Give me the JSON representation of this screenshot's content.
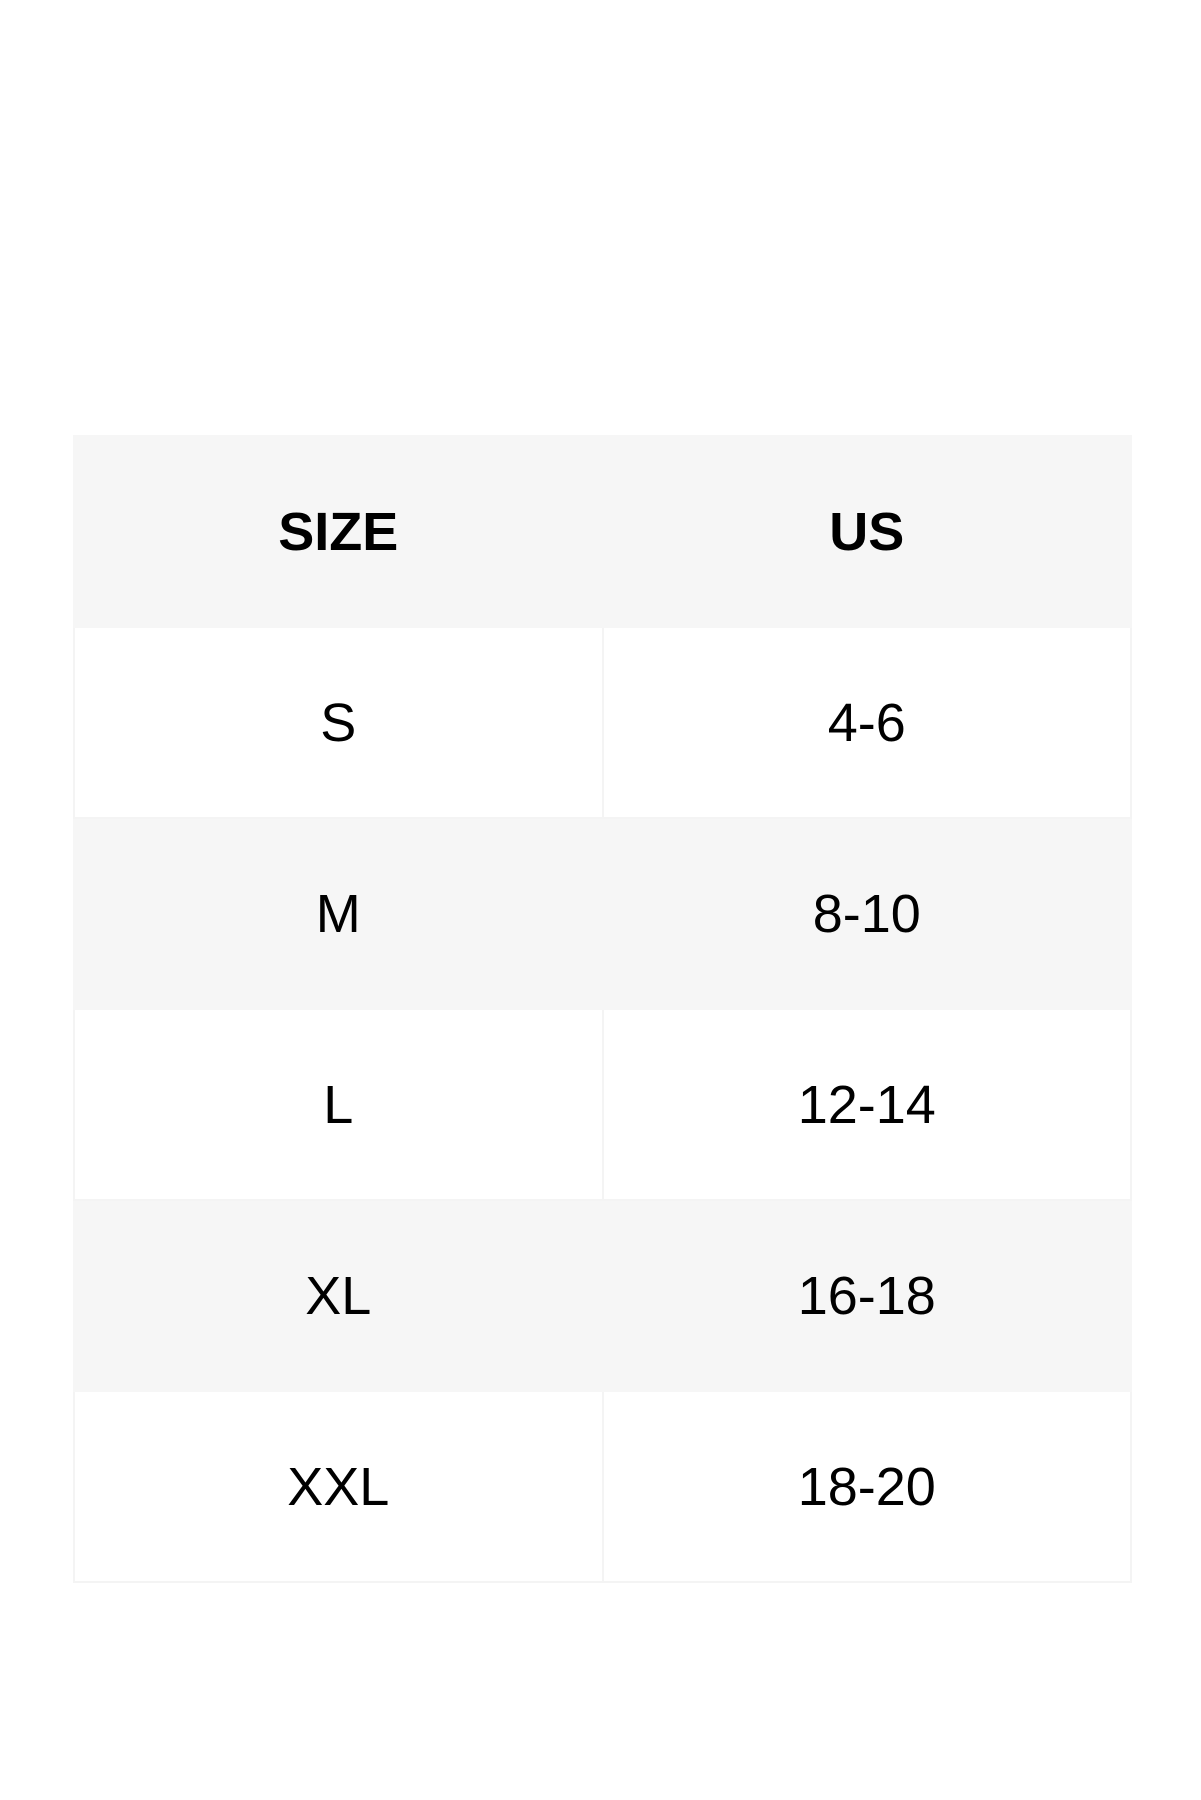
{
  "size_chart": {
    "headers": [
      "SIZE",
      "US"
    ],
    "rows": [
      [
        "S",
        "4-6"
      ],
      [
        "M",
        "8-10"
      ],
      [
        "L",
        "12-14"
      ],
      [
        "XL",
        "16-18"
      ],
      [
        "XXL",
        "18-20"
      ]
    ],
    "colors": {
      "header_bg": "#f6f6f6",
      "stripe_bg": "#f6f6f6",
      "row_bg": "#ffffff",
      "text": "#000000"
    }
  }
}
